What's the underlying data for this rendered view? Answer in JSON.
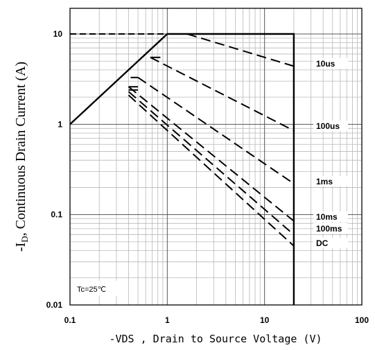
{
  "chart_data": {
    "type": "line",
    "title": "",
    "xlabel": "-VDS , Drain to Source Voltage (V)",
    "ylabel_main": "-I",
    "ylabel_sub": "D",
    "ylabel_rest": ", Continuous Drain Current (A)",
    "xscale": "log",
    "yscale": "log",
    "xlim": [
      0.1,
      100
    ],
    "ylim": [
      0.01,
      20
    ],
    "x_ticks": [
      "0.1",
      "1",
      "10",
      "100"
    ],
    "y_ticks": [
      "0.01",
      "0.1",
      "1",
      "10"
    ],
    "grid": true,
    "annotation": "Tc=25℃",
    "series": [
      {
        "name": "10us",
        "style": "dashed",
        "points": [
          [
            1.6,
            10
          ],
          [
            20,
            4.4
          ]
        ]
      },
      {
        "name": "100us",
        "style": "dashed",
        "points": [
          [
            0.67,
            5.5
          ],
          [
            20,
            0.85
          ]
        ]
      },
      {
        "name": "1ms",
        "style": "dashed",
        "points": [
          [
            0.5,
            3.3
          ],
          [
            20,
            0.22
          ]
        ]
      },
      {
        "name": "10ms",
        "style": "dashed",
        "points": [
          [
            0.4,
            2.6
          ],
          [
            20,
            0.085
          ]
        ]
      },
      {
        "name": "100ms",
        "style": "dashed",
        "points": [
          [
            0.4,
            2.3
          ],
          [
            20,
            0.06
          ]
        ]
      },
      {
        "name": "DC",
        "style": "dashed",
        "points": [
          [
            0.4,
            2.1
          ],
          [
            20,
            0.045
          ]
        ]
      }
    ],
    "boundary": [
      [
        0.1,
        1.0
      ],
      [
        1.0,
        10
      ],
      [
        20,
        10
      ],
      [
        20,
        0.01
      ]
    ],
    "current_limit": [
      [
        0.1,
        10
      ],
      [
        1.0,
        10
      ]
    ],
    "stubs": [
      {
        "points": [
          [
            0.67,
            5.5
          ],
          [
            0.85,
            5.5
          ]
        ]
      },
      {
        "points": [
          [
            0.4,
            2.6
          ],
          [
            0.5,
            2.6
          ]
        ]
      },
      {
        "points": [
          [
            0.4,
            2.4
          ],
          [
            0.5,
            2.4
          ]
        ]
      },
      {
        "points": [
          [
            0.42,
            3.3
          ],
          [
            0.5,
            3.3
          ]
        ]
      }
    ],
    "curve_labels": [
      "10us",
      "100us",
      "1ms",
      "10ms",
      "100ms",
      "DC"
    ]
  }
}
